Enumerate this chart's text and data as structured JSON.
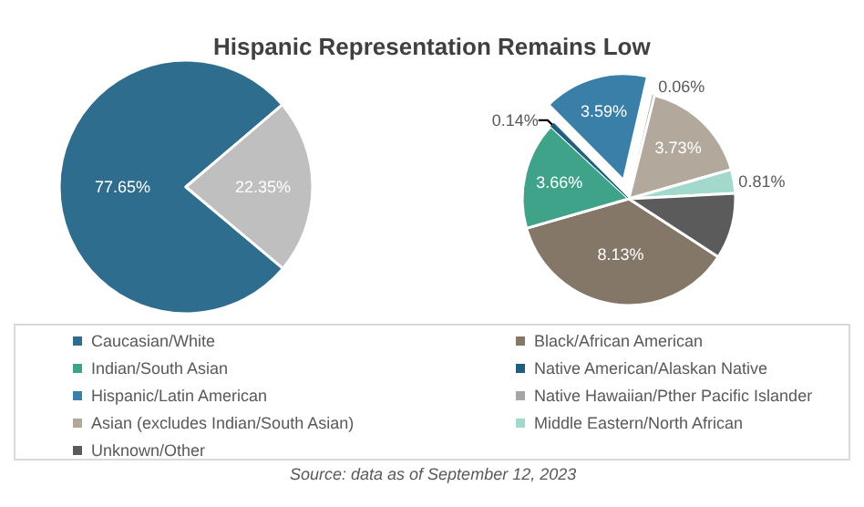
{
  "chart_data": [
    {
      "type": "pie",
      "title": "Hispanic Representation Remains Low",
      "categories": [
        "Caucasian/White",
        null
      ],
      "values": [
        77.65,
        22.35
      ],
      "colors": [
        "#2f6d8f",
        "#bfbfbf"
      ],
      "value_labels": [
        "77.65%",
        "22.35%"
      ],
      "legend": "bottom"
    },
    {
      "type": "pie",
      "categories": [
        "Black/African American",
        "Indian/South Asian",
        "Native American/Alaskan Native",
        "Hispanic/Latin American",
        "Native Hawaiian/Pther Pacific Islander",
        "Asian (excludes Indian/South Asian)",
        "Middle Eastern/North African",
        "Unknown/Other"
      ],
      "values": [
        8.13,
        3.66,
        0.14,
        3.59,
        0.06,
        3.73,
        0.81,
        2.23
      ],
      "colors": [
        "#857768",
        "#3fa38a",
        "#1f5f7d",
        "#3a7fa8",
        "#a6a6a6",
        "#b3a89c",
        "#a3d9cd",
        "#5b5b5b"
      ],
      "value_labels": [
        "8.13%",
        "3.66%",
        "0.14%",
        "3.59%",
        "0.06%",
        "3.73%",
        "0.81%",
        null
      ],
      "legend": "bottom",
      "annotations": [
        "Source: data as of September 12, 2023"
      ]
    }
  ]
}
